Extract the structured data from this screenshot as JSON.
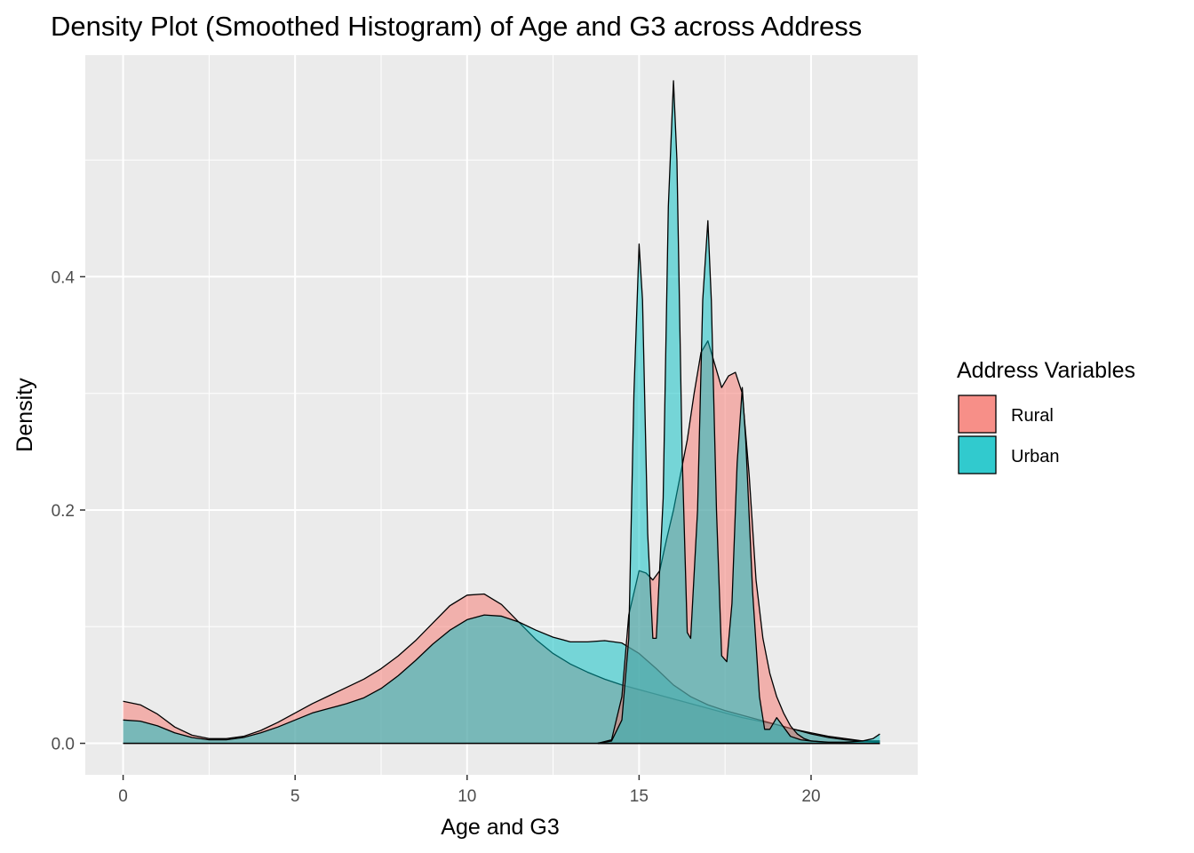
{
  "chart_data": {
    "type": "area",
    "title": "Density Plot (Smoothed Histogram) of Age and G3 across Address",
    "xlabel": "Age and G3",
    "ylabel": "Density",
    "xlim": [
      -1.1,
      23.1
    ],
    "ylim": [
      -0.027,
      0.59
    ],
    "x_ticks": [
      0,
      5,
      10,
      15,
      20
    ],
    "x_tick_labels": [
      "0",
      "5",
      "10",
      "15",
      "20"
    ],
    "y_ticks": [
      0.0,
      0.2,
      0.4
    ],
    "y_tick_labels": [
      "0.0",
      "0.2",
      "0.4"
    ],
    "grid": true,
    "legend": {
      "title": "Address Variables",
      "position": "right",
      "entries": [
        {
          "label": "Rural",
          "color": "#f8766d"
        },
        {
          "label": "Urban",
          "color": "#00bfc4"
        }
      ]
    },
    "fill_alpha": 0.5,
    "series": [
      {
        "name": "Rural",
        "variable": "G3",
        "color": "#f8766d",
        "x": [
          0,
          0.5,
          1,
          1.5,
          2,
          2.5,
          3,
          3.5,
          4,
          4.5,
          5,
          5.5,
          6,
          6.5,
          7,
          7.5,
          8,
          8.5,
          9,
          9.5,
          10,
          10.5,
          11,
          11.5,
          12,
          12.5,
          13,
          13.5,
          14,
          14.5,
          15,
          15.5,
          16,
          16.5,
          17,
          17.5,
          18,
          18.5,
          19,
          19.5,
          20,
          20.5,
          21,
          21.5,
          22
        ],
        "y": [
          0.036,
          0.033,
          0.025,
          0.014,
          0.007,
          0.004,
          0.004,
          0.006,
          0.011,
          0.018,
          0.026,
          0.034,
          0.041,
          0.048,
          0.055,
          0.064,
          0.075,
          0.088,
          0.103,
          0.118,
          0.127,
          0.128,
          0.119,
          0.104,
          0.089,
          0.077,
          0.068,
          0.061,
          0.055,
          0.05,
          0.046,
          0.042,
          0.038,
          0.034,
          0.03,
          0.026,
          0.022,
          0.019,
          0.016,
          0.012,
          0.009,
          0.006,
          0.004,
          0.002,
          0.001
        ]
      },
      {
        "name": "Urban",
        "variable": "G3",
        "color": "#00bfc4",
        "x": [
          0,
          0.5,
          1,
          1.5,
          2,
          2.5,
          3,
          3.5,
          4,
          4.5,
          5,
          5.5,
          6,
          6.5,
          7,
          7.5,
          8,
          8.5,
          9,
          9.5,
          10,
          10.5,
          11,
          11.5,
          12,
          12.5,
          13,
          13.5,
          14,
          14.5,
          15,
          15.5,
          16,
          16.5,
          17,
          17.5,
          18,
          18.5,
          19,
          19.5,
          20,
          20.5,
          21,
          21.5,
          22
        ],
        "y": [
          0.02,
          0.019,
          0.015,
          0.009,
          0.005,
          0.003,
          0.003,
          0.005,
          0.009,
          0.014,
          0.02,
          0.026,
          0.03,
          0.034,
          0.039,
          0.047,
          0.058,
          0.071,
          0.085,
          0.097,
          0.106,
          0.11,
          0.109,
          0.104,
          0.097,
          0.091,
          0.087,
          0.087,
          0.088,
          0.086,
          0.077,
          0.064,
          0.05,
          0.04,
          0.033,
          0.028,
          0.024,
          0.02,
          0.016,
          0.012,
          0.008,
          0.005,
          0.003,
          0.002,
          0.002
        ]
      },
      {
        "name": "Rural",
        "variable": "Age",
        "color": "#f8766d",
        "x": [
          13.8,
          14.2,
          14.5,
          14.7,
          15.0,
          15.2,
          15.4,
          15.6,
          15.8,
          16.0,
          16.2,
          16.4,
          16.6,
          16.8,
          17.0,
          17.2,
          17.4,
          17.6,
          17.8,
          18.0,
          18.2,
          18.4,
          18.6,
          18.8,
          19.0,
          19.2,
          19.4,
          19.6,
          19.8,
          20.0,
          20.4,
          20.8,
          21.2,
          21.6,
          22.0
        ],
        "y": [
          0.0,
          0.003,
          0.04,
          0.11,
          0.148,
          0.146,
          0.14,
          0.148,
          0.175,
          0.2,
          0.23,
          0.26,
          0.3,
          0.335,
          0.345,
          0.325,
          0.305,
          0.315,
          0.318,
          0.3,
          0.23,
          0.14,
          0.09,
          0.06,
          0.04,
          0.026,
          0.015,
          0.008,
          0.004,
          0.002,
          0.001,
          0.0,
          0.0,
          0.0,
          0.0
        ]
      },
      {
        "name": "Urban",
        "variable": "Age",
        "color": "#00bfc4",
        "x": [
          13.8,
          14.2,
          14.5,
          14.7,
          14.85,
          15.0,
          15.1,
          15.25,
          15.4,
          15.5,
          15.7,
          15.85,
          16.0,
          16.1,
          16.25,
          16.4,
          16.5,
          16.7,
          16.85,
          17.0,
          17.1,
          17.25,
          17.4,
          17.55,
          17.7,
          17.85,
          18.0,
          18.1,
          18.3,
          18.5,
          18.65,
          18.8,
          19.0,
          19.2,
          19.4,
          19.7,
          20.0,
          20.5,
          21.0,
          21.5,
          21.8,
          22.0
        ],
        "y": [
          0.0,
          0.002,
          0.02,
          0.09,
          0.3,
          0.428,
          0.38,
          0.18,
          0.09,
          0.09,
          0.21,
          0.46,
          0.568,
          0.5,
          0.25,
          0.095,
          0.09,
          0.2,
          0.38,
          0.448,
          0.38,
          0.2,
          0.075,
          0.07,
          0.12,
          0.24,
          0.305,
          0.26,
          0.13,
          0.04,
          0.012,
          0.012,
          0.022,
          0.014,
          0.006,
          0.003,
          0.002,
          0.001,
          0.001,
          0.002,
          0.004,
          0.008
        ]
      }
    ]
  }
}
